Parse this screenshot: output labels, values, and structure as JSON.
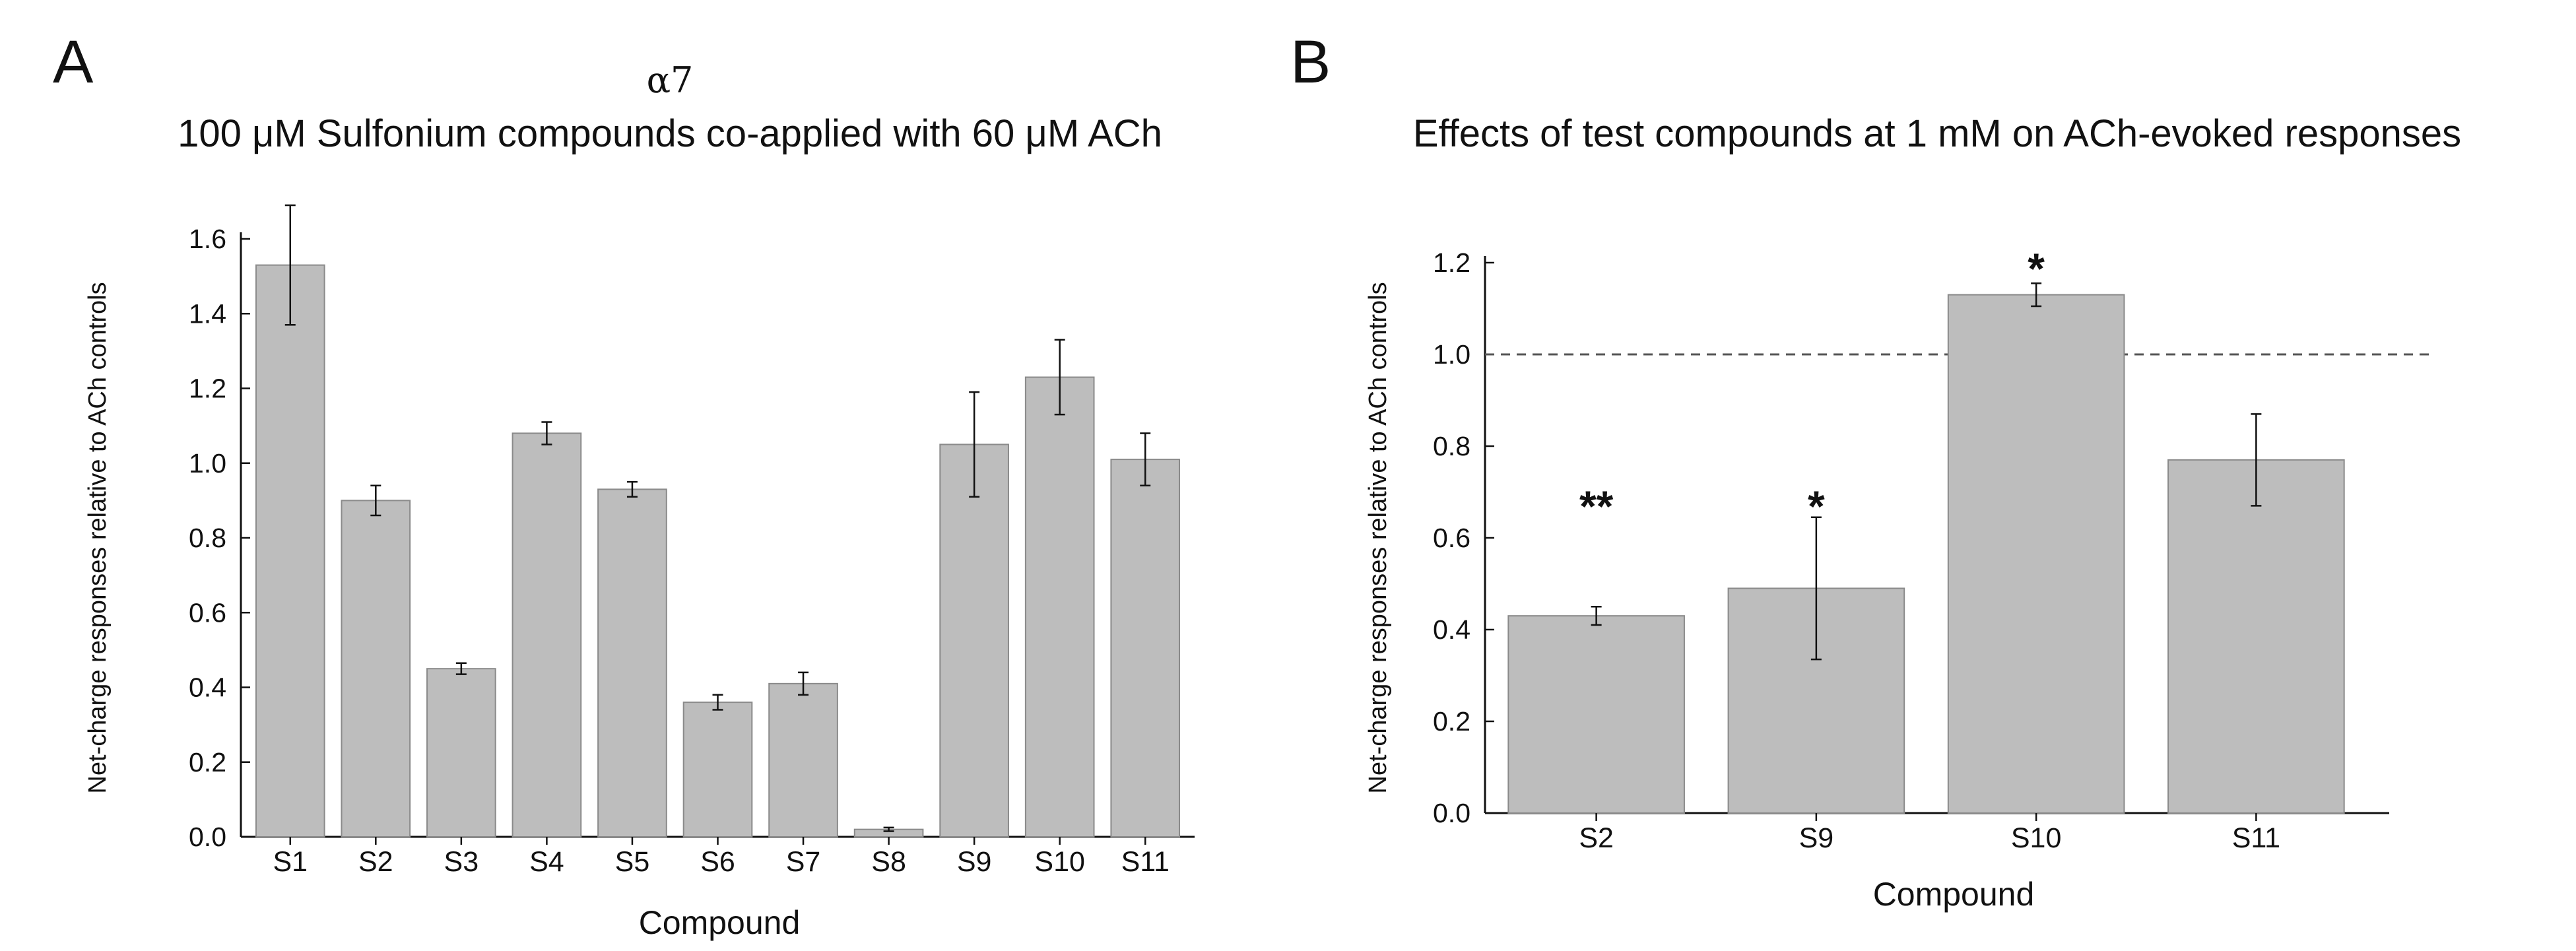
{
  "colors": {
    "bar_fill": "#bdbdbd",
    "bar_stroke": "#8a8a8a",
    "axis": "#111111",
    "reference_line": "#555555",
    "text": "#111111"
  },
  "chart_data": [
    {
      "type": "bar",
      "panel_label": "A",
      "title_line1": "α7",
      "title": "100 μM Sulfonium compounds co-applied with 60 μM ACh",
      "xlabel": "Compound",
      "ylabel": "Net-charge responses relative to ACh controls",
      "ylim": [
        0,
        1.6
      ],
      "yticks": [
        "0.0",
        "0.2",
        "0.4",
        "0.6",
        "0.8",
        "1.0",
        "1.2",
        "1.4",
        "1.6"
      ],
      "grid": false,
      "categories": [
        "S1",
        "S2",
        "S3",
        "S4",
        "S5",
        "S6",
        "S7",
        "S8",
        "S9",
        "S10",
        "S11"
      ],
      "values": [
        1.53,
        0.9,
        0.45,
        1.08,
        0.93,
        0.36,
        0.41,
        0.02,
        1.05,
        1.23,
        1.01
      ],
      "errors": [
        0.16,
        0.04,
        0.015,
        0.03,
        0.02,
        0.02,
        0.03,
        0.005,
        0.14,
        0.1,
        0.07
      ]
    },
    {
      "type": "bar",
      "panel_label": "B",
      "title": "Effects of test compounds at 1 mM on ACh-evoked responses",
      "xlabel": "Compound",
      "ylabel": "Net-charge responses relative to ACh controls",
      "ylim": [
        0,
        1.2
      ],
      "yticks": [
        "0.0",
        "0.2",
        "0.4",
        "0.6",
        "0.8",
        "1.0",
        "1.2"
      ],
      "grid": false,
      "reference_line": 1.0,
      "categories": [
        "S2",
        "S9",
        "S10",
        "S11"
      ],
      "values": [
        0.43,
        0.49,
        1.13,
        0.77
      ],
      "errors": [
        0.02,
        0.155,
        0.025,
        0.1
      ],
      "significance": [
        "**",
        "*",
        "*",
        ""
      ]
    }
  ]
}
